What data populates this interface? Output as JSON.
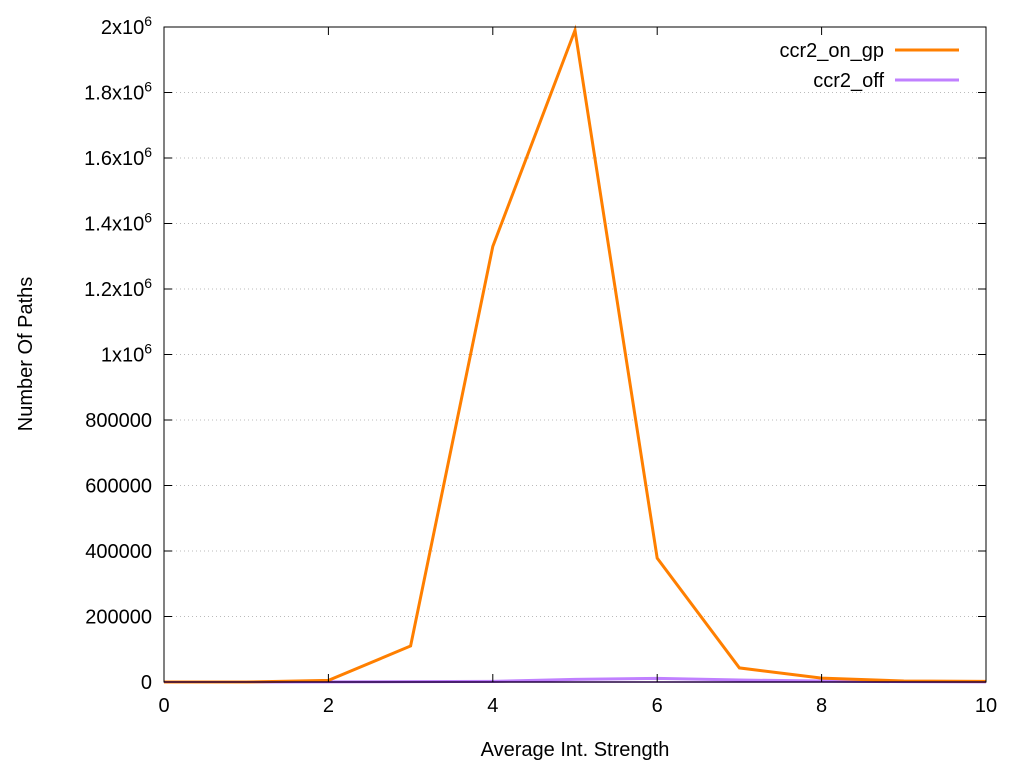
{
  "chart_data": {
    "type": "line",
    "title": "",
    "xlabel": "Average Int. Strength",
    "ylabel": "Number Of Paths",
    "xlim": [
      0,
      10
    ],
    "ylim": [
      0,
      2000000
    ],
    "xticks": [
      0,
      2,
      4,
      6,
      8,
      10
    ],
    "xtick_labels": [
      "0",
      "2",
      "4",
      "6",
      "8",
      "10"
    ],
    "yticks": [
      0,
      200000,
      400000,
      600000,
      800000,
      1000000,
      1200000,
      1400000,
      1600000,
      1800000,
      2000000
    ],
    "ytick_labels": [
      "0",
      "200000",
      "400000",
      "600000",
      "800000",
      "1x10^6",
      "1.2x10^6",
      "1.4x10^6",
      "1.6x10^6",
      "1.8x10^6",
      "2x10^6"
    ],
    "grid": "horizontal dotted",
    "legend_position": "top-right",
    "x": [
      0,
      1,
      2,
      3,
      4,
      5,
      6,
      7,
      8,
      9,
      10
    ],
    "series": [
      {
        "name": "ccr2_on_gp",
        "color": "#ff7f00",
        "values": [
          0,
          0,
          5000,
          110000,
          1330000,
          1990000,
          378000,
          43000,
          12000,
          3000,
          2000
        ]
      },
      {
        "name": "ccr2_off",
        "color": "#c080ff",
        "values": [
          0,
          0,
          500,
          1000,
          2000,
          8000,
          11000,
          6000,
          3000,
          1000,
          500
        ]
      }
    ]
  }
}
